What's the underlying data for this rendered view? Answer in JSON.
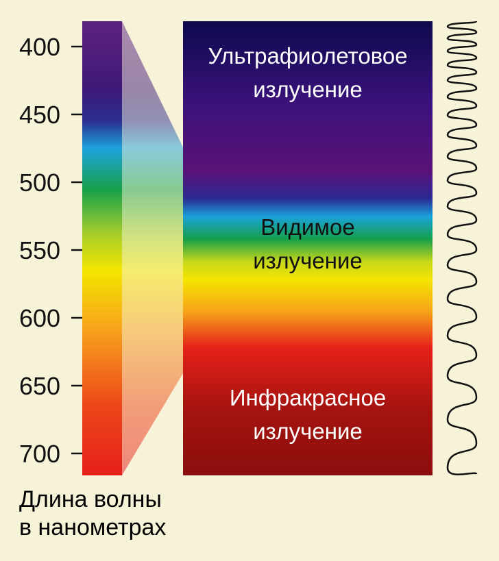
{
  "scale": {
    "ticks": [
      400,
      450,
      500,
      550,
      600,
      650,
      700
    ],
    "label": [
      "Длина волны",
      "в нанометрах"
    ]
  },
  "regions": [
    {
      "name": "ultraviolet",
      "lines": [
        "Ультрафиолетовое",
        "излучение"
      ]
    },
    {
      "name": "visible",
      "lines": [
        "Видимое",
        "излучение"
      ]
    },
    {
      "name": "infrared",
      "lines": [
        "Инфракрасное",
        "излучение"
      ]
    }
  ]
}
